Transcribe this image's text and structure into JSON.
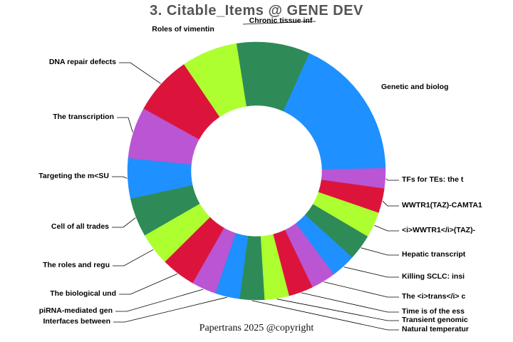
{
  "title": "3. Citable_Items @ GENE DEV",
  "footer": "Papertrans 2025 @copyright",
  "palette": [
    "#2E8B57",
    "#1E90FF",
    "#BA55D3",
    "#DC143C",
    "#ADFF2F"
  ],
  "chart_data": {
    "type": "pie",
    "donut": true,
    "start_angle_deg": -9,
    "inner_radius_ratio": 0.51,
    "legend": "none",
    "values_are": "estimated_arc_degrees",
    "title": "3. Citable_Items @ GENE DEV",
    "slices": [
      {
        "label": "Chronic tissue inf",
        "value": 33,
        "color": "#2E8B57"
      },
      {
        "label": "Genetic and biolog",
        "value": 64,
        "color": "#1E90FF"
      },
      {
        "label": "TFs for TEs: the t",
        "value": 9,
        "color": "#BA55D3"
      },
      {
        "label": "WWTR1(TAZ)-CAMTA1",
        "value": 11,
        "color": "#DC143C"
      },
      {
        "label": "<i>WWTR1</i>(TAZ)-",
        "value": 11.5,
        "color": "#ADFF2F"
      },
      {
        "label": "Hepatic transcript",
        "value": 11.5,
        "color": "#2E8B57"
      },
      {
        "label": "Killing SCLC: insi",
        "value": 11,
        "color": "#1E90FF"
      },
      {
        "label": "The <i>trans</i> c",
        "value": 11,
        "color": "#BA55D3"
      },
      {
        "label": "Time is of the ess",
        "value": 11,
        "color": "#DC143C"
      },
      {
        "label": "Transient genomic",
        "value": 11,
        "color": "#ADFF2F"
      },
      {
        "label": "Natural temperatur",
        "value": 11,
        "color": "#2E8B57"
      },
      {
        "label": "Interfaces between",
        "value": 11,
        "color": "#1E90FF"
      },
      {
        "label": "piRNA-mediated gen",
        "value": 11,
        "color": "#BA55D3"
      },
      {
        "label": "The biological und",
        "value": 15.4,
        "color": "#DC143C"
      },
      {
        "label": "The roles and regu",
        "value": 14.7,
        "color": "#ADFF2F"
      },
      {
        "label": "Cell of all trades",
        "value": 17.4,
        "color": "#2E8B57"
      },
      {
        "label": "Targeting the m<SU",
        "value": 18,
        "color": "#1E90FF"
      },
      {
        "label": "The transcription",
        "value": 23,
        "color": "#BA55D3"
      },
      {
        "label": "DNA repair defects",
        "value": 26.6,
        "color": "#DC143C"
      },
      {
        "label": "Roles of vimentin",
        "value": 25,
        "color": "#ADFF2F"
      }
    ]
  }
}
